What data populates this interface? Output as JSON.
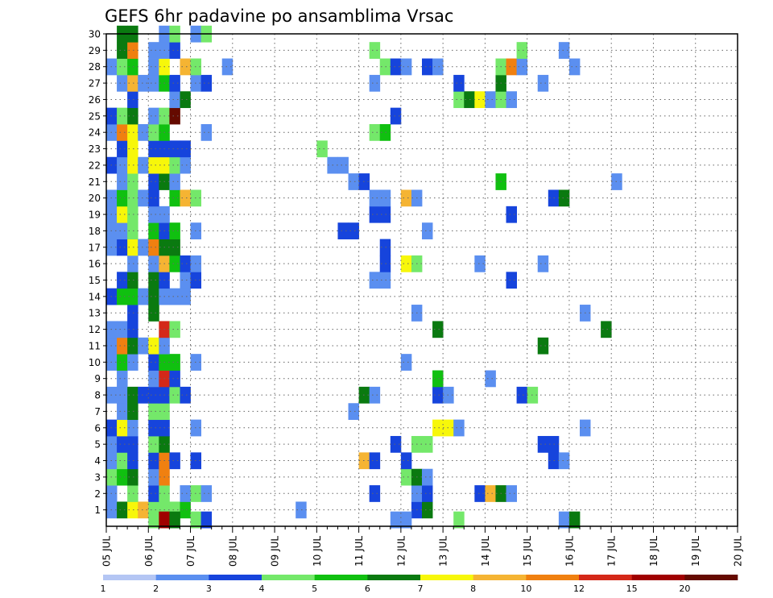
{
  "chart_data": {
    "type": "heatmap",
    "title": "GEFS 6hr padavine po ansamblima Vrsac",
    "xlabel": "",
    "ylabel": "",
    "x_ticks": [
      "05 JUL",
      "06 JUL",
      "07 JUL",
      "08 JUL",
      "09 JUL",
      "10 JUL",
      "11 JUL",
      "12 JUL",
      "13 JUL",
      "14 JUL",
      "15 JUL",
      "16 JUL",
      "17 JUL",
      "18 JUL",
      "19 JUL",
      "20 JUL"
    ],
    "x_range_days": [
      0,
      15
    ],
    "time_step_hours": 6,
    "y_ticks": [
      1,
      2,
      3,
      4,
      5,
      6,
      7,
      8,
      9,
      10,
      11,
      12,
      13,
      14,
      15,
      16,
      17,
      18,
      19,
      20,
      21,
      22,
      23,
      24,
      25,
      26,
      27,
      28,
      29,
      30
    ],
    "y_range": [
      0,
      30
    ],
    "grid": "dotted",
    "legend": {
      "placement": "bottom",
      "levels": [
        "1",
        "2",
        "3",
        "4",
        "5",
        "6",
        "7",
        "8",
        "10",
        "12",
        "15",
        "20"
      ],
      "colors": [
        "#b4c6f4",
        "#5b8ff0",
        "#1644dc",
        "#74e86a",
        "#10c010",
        "#0a7a10",
        "#f7f70a",
        "#f5b433",
        "#f08010",
        "#d42818",
        "#a00000",
        "#650a00"
      ]
    },
    "color_scale": [
      "#b4c6f4",
      "#5b8ff0",
      "#1644dc",
      "#74e86a",
      "#10c010",
      "#0a7a10",
      "#f7f70a",
      "#f5b433",
      "#f08010",
      "#d42818",
      "#a00000",
      "#650a00"
    ],
    "cells": [
      [
        1,
        0,
        1
      ],
      [
        1,
        1,
        5
      ],
      [
        1,
        2,
        6
      ],
      [
        1,
        3,
        7
      ],
      [
        1,
        4,
        3
      ],
      [
        1,
        5,
        3
      ],
      [
        1,
        6,
        3
      ],
      [
        1,
        7,
        4
      ],
      [
        1,
        18,
        1
      ],
      [
        1,
        29,
        2
      ],
      [
        1,
        30,
        5
      ],
      [
        2,
        0,
        1
      ],
      [
        2,
        2,
        3
      ],
      [
        2,
        4,
        2
      ],
      [
        2,
        5,
        3
      ],
      [
        2,
        7,
        1
      ],
      [
        2,
        8,
        3
      ],
      [
        2,
        9,
        1
      ],
      [
        2,
        25,
        2
      ],
      [
        2,
        29,
        1
      ],
      [
        2,
        30,
        2
      ],
      [
        2,
        35,
        2
      ],
      [
        2,
        36,
        7
      ],
      [
        2,
        37,
        5
      ],
      [
        2,
        38,
        1
      ],
      [
        3,
        0,
        3
      ],
      [
        3,
        1,
        4
      ],
      [
        3,
        2,
        5
      ],
      [
        3,
        4,
        1
      ],
      [
        3,
        5,
        8
      ],
      [
        3,
        28,
        3
      ],
      [
        3,
        29,
        5
      ],
      [
        3,
        30,
        1
      ],
      [
        4,
        0,
        1
      ],
      [
        4,
        1,
        3
      ],
      [
        4,
        2,
        2
      ],
      [
        4,
        4,
        2
      ],
      [
        4,
        5,
        8
      ],
      [
        4,
        6,
        2
      ],
      [
        4,
        8,
        2
      ],
      [
        4,
        24,
        7
      ],
      [
        4,
        25,
        2
      ],
      [
        4,
        28,
        2
      ],
      [
        4,
        42,
        2
      ],
      [
        4,
        43,
        1
      ],
      [
        5,
        0,
        1
      ],
      [
        5,
        1,
        2
      ],
      [
        5,
        2,
        2
      ],
      [
        5,
        4,
        3
      ],
      [
        5,
        5,
        5
      ],
      [
        5,
        27,
        2
      ],
      [
        5,
        29,
        3
      ],
      [
        5,
        30,
        3
      ],
      [
        5,
        41,
        2
      ],
      [
        5,
        42,
        2
      ],
      [
        6,
        0,
        2
      ],
      [
        6,
        1,
        6
      ],
      [
        6,
        2,
        1
      ],
      [
        6,
        4,
        2
      ],
      [
        6,
        5,
        2
      ],
      [
        6,
        8,
        1
      ],
      [
        6,
        31,
        6
      ],
      [
        6,
        32,
        6
      ],
      [
        6,
        33,
        1
      ],
      [
        6,
        45,
        1
      ],
      [
        7,
        1,
        1
      ],
      [
        7,
        2,
        5
      ],
      [
        7,
        4,
        3
      ],
      [
        7,
        5,
        3
      ],
      [
        7,
        23,
        1
      ],
      [
        8,
        0,
        1
      ],
      [
        8,
        1,
        1
      ],
      [
        8,
        2,
        5
      ],
      [
        8,
        3,
        2
      ],
      [
        8,
        4,
        2
      ],
      [
        8,
        5,
        2
      ],
      [
        8,
        6,
        3
      ],
      [
        8,
        7,
        2
      ],
      [
        8,
        24,
        5
      ],
      [
        8,
        25,
        1
      ],
      [
        8,
        31,
        2
      ],
      [
        8,
        32,
        1
      ],
      [
        8,
        39,
        2
      ],
      [
        8,
        40,
        3
      ],
      [
        9,
        1,
        1
      ],
      [
        9,
        4,
        1
      ],
      [
        9,
        5,
        9
      ],
      [
        9,
        6,
        2
      ],
      [
        9,
        31,
        4
      ],
      [
        9,
        36,
        1
      ],
      [
        10,
        0,
        1
      ],
      [
        10,
        1,
        4
      ],
      [
        10,
        2,
        1
      ],
      [
        10,
        4,
        2
      ],
      [
        10,
        5,
        4
      ],
      [
        10,
        6,
        4
      ],
      [
        10,
        8,
        1
      ],
      [
        10,
        28,
        1
      ],
      [
        11,
        0,
        1
      ],
      [
        11,
        1,
        8
      ],
      [
        11,
        2,
        5
      ],
      [
        11,
        3,
        1
      ],
      [
        11,
        4,
        6
      ],
      [
        11,
        5,
        1
      ],
      [
        11,
        41,
        5
      ],
      [
        12,
        0,
        1
      ],
      [
        12,
        1,
        1
      ],
      [
        12,
        2,
        2
      ],
      [
        12,
        5,
        9
      ],
      [
        12,
        6,
        3
      ],
      [
        12,
        31,
        5
      ],
      [
        12,
        47,
        5
      ],
      [
        13,
        2,
        2
      ],
      [
        13,
        4,
        5
      ],
      [
        13,
        29,
        1
      ],
      [
        13,
        45,
        1
      ],
      [
        14,
        0,
        2
      ],
      [
        14,
        1,
        4
      ],
      [
        14,
        2,
        4
      ],
      [
        14,
        3,
        1
      ],
      [
        14,
        4,
        5
      ],
      [
        14,
        5,
        1
      ],
      [
        14,
        6,
        1
      ],
      [
        14,
        7,
        1
      ],
      [
        15,
        1,
        2
      ],
      [
        15,
        2,
        5
      ],
      [
        15,
        4,
        5
      ],
      [
        15,
        5,
        2
      ],
      [
        15,
        7,
        1
      ],
      [
        15,
        8,
        2
      ],
      [
        15,
        25,
        1
      ],
      [
        15,
        26,
        1
      ],
      [
        15,
        38,
        2
      ],
      [
        16,
        2,
        1
      ],
      [
        16,
        4,
        1
      ],
      [
        16,
        5,
        7
      ],
      [
        16,
        6,
        4
      ],
      [
        16,
        7,
        2
      ],
      [
        16,
        8,
        1
      ],
      [
        16,
        26,
        2
      ],
      [
        16,
        28,
        6
      ],
      [
        16,
        29,
        3
      ],
      [
        16,
        35,
        1
      ],
      [
        16,
        41,
        1
      ],
      [
        17,
        0,
        1
      ],
      [
        17,
        1,
        2
      ],
      [
        17,
        2,
        6
      ],
      [
        17,
        3,
        1
      ],
      [
        17,
        4,
        8
      ],
      [
        17,
        5,
        5
      ],
      [
        17,
        6,
        5
      ],
      [
        17,
        26,
        2
      ],
      [
        18,
        0,
        1
      ],
      [
        18,
        1,
        1
      ],
      [
        18,
        2,
        3
      ],
      [
        18,
        4,
        4
      ],
      [
        18,
        5,
        2
      ],
      [
        18,
        6,
        4
      ],
      [
        18,
        8,
        1
      ],
      [
        18,
        22,
        2
      ],
      [
        18,
        23,
        2
      ],
      [
        18,
        30,
        1
      ],
      [
        19,
        0,
        1
      ],
      [
        19,
        1,
        6
      ],
      [
        19,
        2,
        3
      ],
      [
        19,
        4,
        1
      ],
      [
        19,
        5,
        1
      ],
      [
        19,
        25,
        2
      ],
      [
        19,
        26,
        2
      ],
      [
        19,
        38,
        2
      ],
      [
        20,
        0,
        1
      ],
      [
        20,
        1,
        4
      ],
      [
        20,
        2,
        3
      ],
      [
        20,
        3,
        1
      ],
      [
        20,
        4,
        2
      ],
      [
        20,
        6,
        4
      ],
      [
        20,
        7,
        7
      ],
      [
        20,
        8,
        3
      ],
      [
        20,
        25,
        1
      ],
      [
        20,
        26,
        1
      ],
      [
        20,
        28,
        7
      ],
      [
        20,
        29,
        1
      ],
      [
        20,
        42,
        2
      ],
      [
        20,
        43,
        5
      ],
      [
        21,
        1,
        1
      ],
      [
        21,
        2,
        3
      ],
      [
        21,
        4,
        2
      ],
      [
        21,
        5,
        5
      ],
      [
        21,
        6,
        1
      ],
      [
        21,
        23,
        1
      ],
      [
        21,
        24,
        2
      ],
      [
        21,
        37,
        4
      ],
      [
        21,
        48,
        1
      ],
      [
        22,
        0,
        2
      ],
      [
        22,
        1,
        1
      ],
      [
        22,
        2,
        6
      ],
      [
        22,
        3,
        1
      ],
      [
        22,
        4,
        6
      ],
      [
        22,
        5,
        6
      ],
      [
        22,
        6,
        3
      ],
      [
        22,
        7,
        1
      ],
      [
        22,
        21,
        1
      ],
      [
        22,
        22,
        1
      ],
      [
        23,
        1,
        2
      ],
      [
        23,
        2,
        6
      ],
      [
        23,
        4,
        2
      ],
      [
        23,
        5,
        2
      ],
      [
        23,
        6,
        2
      ],
      [
        23,
        7,
        2
      ],
      [
        23,
        20,
        3
      ],
      [
        24,
        0,
        1
      ],
      [
        24,
        1,
        8
      ],
      [
        24,
        2,
        6
      ],
      [
        24,
        3,
        1
      ],
      [
        24,
        4,
        3
      ],
      [
        24,
        5,
        4
      ],
      [
        24,
        9,
        1
      ],
      [
        24,
        25,
        3
      ],
      [
        24,
        26,
        4
      ],
      [
        25,
        0,
        2
      ],
      [
        25,
        1,
        3
      ],
      [
        25,
        2,
        5
      ],
      [
        25,
        4,
        1
      ],
      [
        25,
        5,
        3
      ],
      [
        25,
        6,
        11
      ],
      [
        25,
        27,
        2
      ],
      [
        26,
        2,
        2
      ],
      [
        26,
        6,
        1
      ],
      [
        26,
        7,
        5
      ],
      [
        26,
        33,
        3
      ],
      [
        26,
        34,
        5
      ],
      [
        26,
        35,
        6
      ],
      [
        26,
        36,
        1
      ],
      [
        26,
        37,
        3
      ],
      [
        26,
        38,
        1
      ],
      [
        27,
        1,
        1
      ],
      [
        27,
        2,
        7
      ],
      [
        27,
        3,
        1
      ],
      [
        27,
        4,
        1
      ],
      [
        27,
        5,
        4
      ],
      [
        27,
        6,
        2
      ],
      [
        27,
        8,
        1
      ],
      [
        27,
        9,
        2
      ],
      [
        27,
        25,
        1
      ],
      [
        27,
        33,
        2
      ],
      [
        27,
        37,
        5
      ],
      [
        27,
        41,
        1
      ],
      [
        28,
        0,
        1
      ],
      [
        28,
        1,
        3
      ],
      [
        28,
        2,
        4
      ],
      [
        28,
        4,
        1
      ],
      [
        28,
        5,
        6
      ],
      [
        28,
        7,
        7
      ],
      [
        28,
        8,
        3
      ],
      [
        28,
        11,
        1
      ],
      [
        28,
        26,
        3
      ],
      [
        28,
        27,
        2
      ],
      [
        28,
        28,
        1
      ],
      [
        28,
        30,
        2
      ],
      [
        28,
        31,
        1
      ],
      [
        28,
        37,
        3
      ],
      [
        28,
        38,
        8
      ],
      [
        28,
        39,
        1
      ],
      [
        28,
        44,
        1
      ],
      [
        29,
        1,
        5
      ],
      [
        29,
        2,
        8
      ],
      [
        29,
        4,
        1
      ],
      [
        29,
        5,
        1
      ],
      [
        29,
        6,
        2
      ],
      [
        29,
        25,
        3
      ],
      [
        29,
        39,
        3
      ],
      [
        29,
        43,
        1
      ],
      [
        30,
        1,
        5
      ],
      [
        30,
        2,
        5
      ],
      [
        30,
        5,
        1
      ],
      [
        30,
        6,
        3
      ],
      [
        30,
        8,
        1
      ],
      [
        30,
        9,
        3
      ],
      [
        0.4,
        4,
        3
      ],
      [
        0.4,
        5,
        10
      ],
      [
        0.4,
        6,
        5
      ],
      [
        0.4,
        8,
        3
      ],
      [
        0.4,
        9,
        2
      ],
      [
        0.4,
        27,
        1
      ],
      [
        0.4,
        28,
        1
      ],
      [
        0.4,
        33,
        3
      ],
      [
        0.4,
        43,
        1
      ],
      [
        0.4,
        44,
        5
      ]
    ]
  }
}
